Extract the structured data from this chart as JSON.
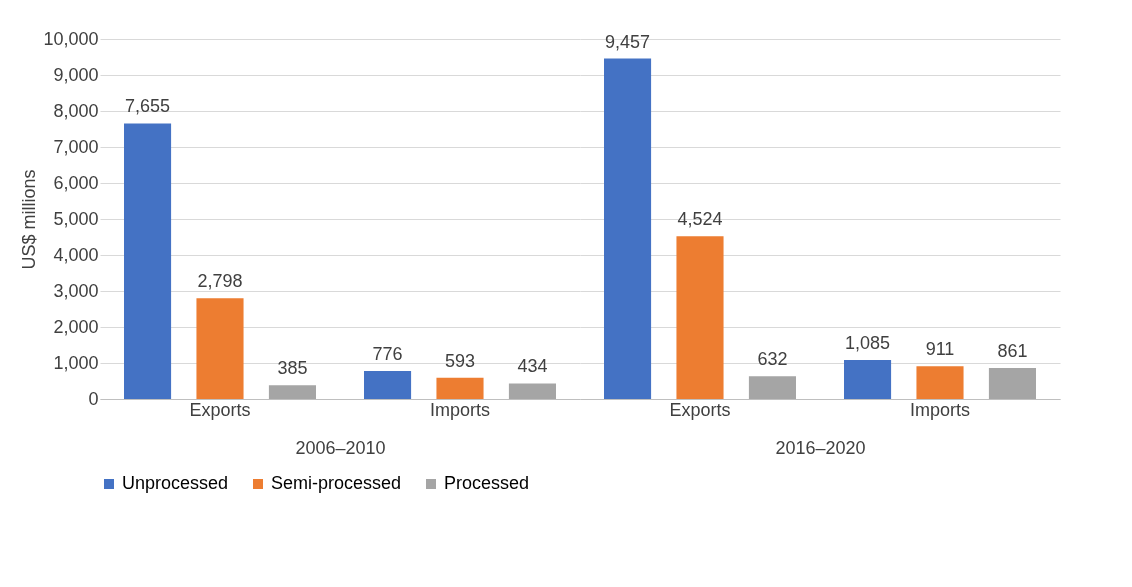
{
  "chart_data": [
    {
      "type": "bar",
      "xlabel": "2006–2010",
      "ylabel": "US$ millions",
      "categories": [
        "Exports",
        "Imports"
      ],
      "series": [
        {
          "name": "Unprocessed",
          "color": "#4472c4",
          "values": [
            7655,
            776
          ]
        },
        {
          "name": "Semi-processed",
          "color": "#ed7d31",
          "values": [
            2798,
            593
          ]
        },
        {
          "name": "Processed",
          "color": "#a5a5a5",
          "values": [
            385,
            434
          ]
        }
      ],
      "ylim": [
        0,
        10000
      ],
      "yticks": [
        0,
        {
          "value": 1000,
          "label": "1,000"
        },
        {
          "value": 2000,
          "label": "2,000"
        },
        {
          "value": 3000,
          "label": "3,000"
        },
        {
          "value": 4000,
          "label": "4,000"
        },
        {
          "value": 5000,
          "label": "5,000"
        },
        {
          "value": 6000,
          "label": "6,000"
        },
        {
          "value": 7000,
          "label": "7,000"
        },
        {
          "value": 8000,
          "label": "8,000"
        },
        {
          "value": 9000,
          "label": "9,000"
        },
        {
          "value": 10000,
          "label": "10,000"
        }
      ],
      "value_labels": [
        [
          "7,655",
          "776"
        ],
        [
          "2,798",
          "593"
        ],
        [
          "385",
          "434"
        ]
      ],
      "grid": "y",
      "legend": "bottom"
    },
    {
      "type": "bar",
      "xlabel": "2016–2020",
      "categories": [
        "Exports",
        "Imports"
      ],
      "series": [
        {
          "name": "Unprocessed",
          "color": "#4472c4",
          "values": [
            9457,
            1085
          ]
        },
        {
          "name": "Semi-processed",
          "color": "#ed7d31",
          "values": [
            4524,
            911
          ]
        },
        {
          "name": "Processed",
          "color": "#a5a5a5",
          "values": [
            632,
            861
          ]
        }
      ],
      "ylim": [
        0,
        10000
      ],
      "yticks": [
        0,
        1000,
        2000,
        3000,
        4000,
        5000,
        6000,
        7000,
        8000,
        9000,
        10000
      ],
      "value_labels": [
        [
          "9,457",
          "1,085"
        ],
        [
          "4,524",
          "911"
        ],
        [
          "632",
          "861"
        ]
      ],
      "grid": "y",
      "legend": "bottom",
      "tick_labels": "x"
    }
  ]
}
